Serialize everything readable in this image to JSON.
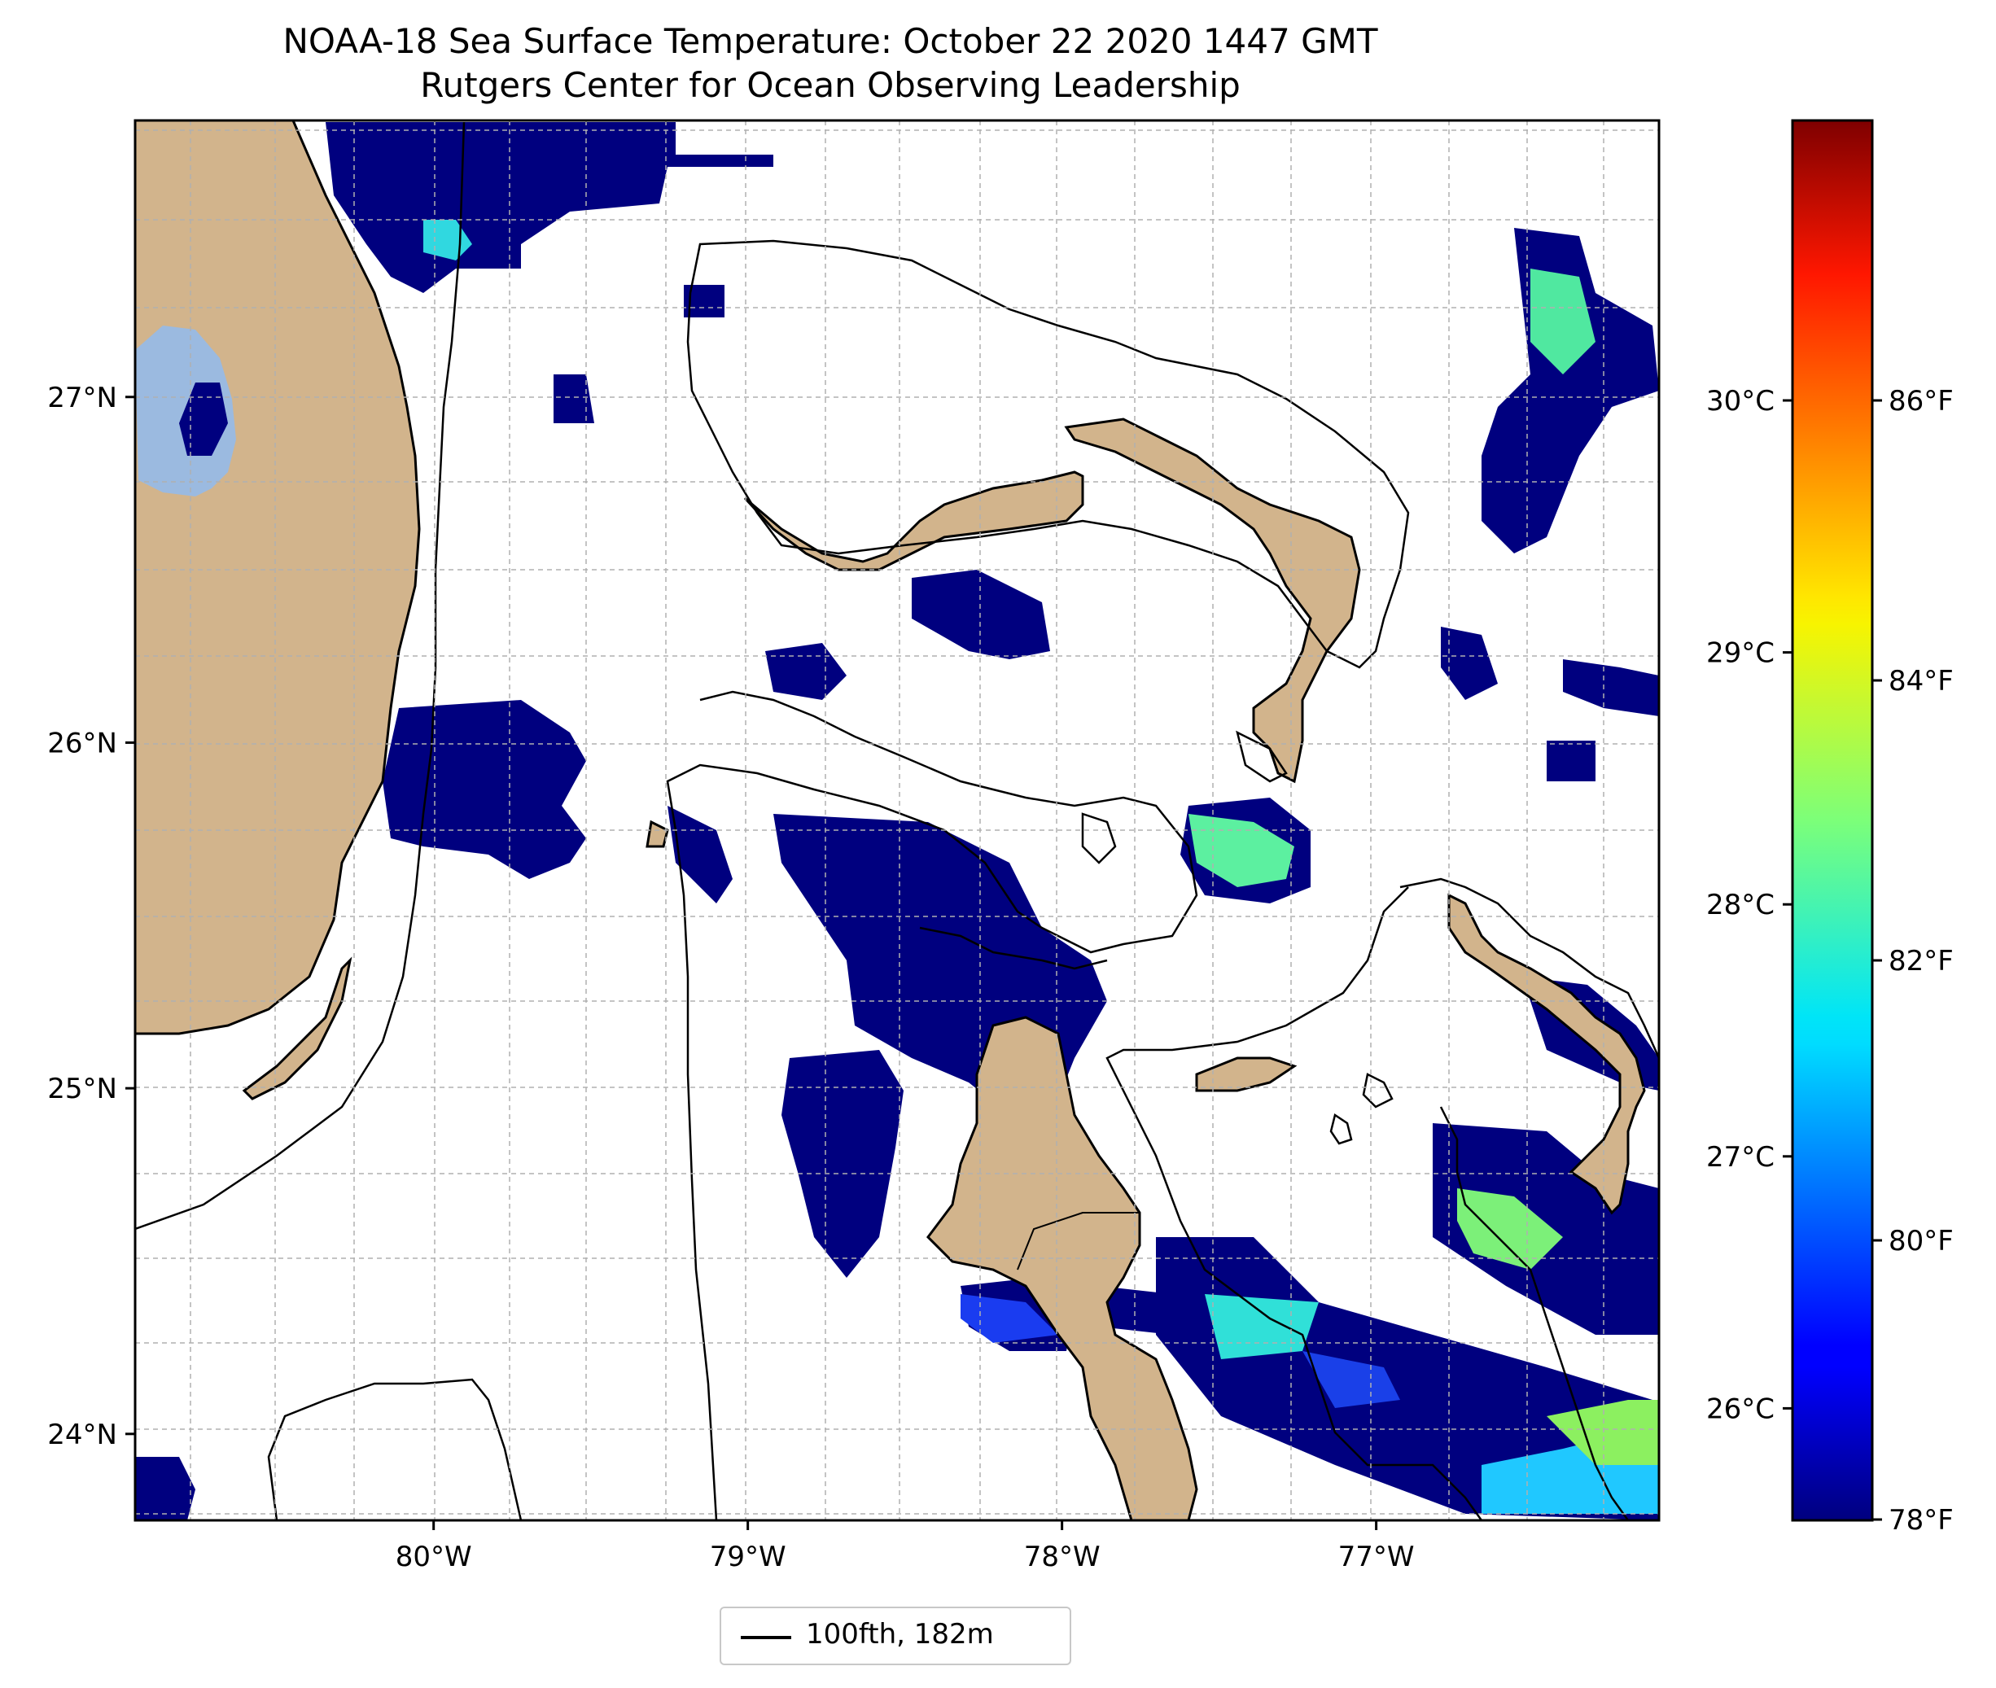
{
  "title": {
    "line1": "NOAA-18 Sea Surface Temperature: October 22 2020 1447 GMT",
    "line2": "Rutgers Center for Ocean Observing Leadership"
  },
  "map": {
    "extent": {
      "lon_min": -80.95,
      "lon_max": -76.1,
      "lat_min": 23.75,
      "lat_max": 27.8
    },
    "land_color": "#d2b48c",
    "lake_color": "#9bbae0",
    "gridlines": true,
    "lat_ticks": [
      {
        "value": 27,
        "label": "27°N"
      },
      {
        "value": 26,
        "label": "26°N"
      },
      {
        "value": 25,
        "label": "25°N"
      },
      {
        "value": 24,
        "label": "24°N"
      }
    ],
    "lon_ticks": [
      {
        "value": -80,
        "label": "80°W"
      },
      {
        "value": -79,
        "label": "79°W"
      },
      {
        "value": -78,
        "label": "78°W"
      },
      {
        "value": -77,
        "label": "77°W"
      }
    ]
  },
  "colorbar": {
    "colormap": "jet",
    "range_f": [
      78,
      88
    ],
    "celsius_ticks": [
      {
        "value": 30,
        "label": "30°C"
      },
      {
        "value": 29,
        "label": "29°C"
      },
      {
        "value": 28,
        "label": "28°C"
      },
      {
        "value": 27,
        "label": "27°C"
      },
      {
        "value": 26,
        "label": "26°C"
      }
    ],
    "fahrenheit_ticks": [
      {
        "value": 86,
        "label": "86°F"
      },
      {
        "value": 84,
        "label": "84°F"
      },
      {
        "value": 82,
        "label": "82°F"
      },
      {
        "value": 80,
        "label": "80°F"
      },
      {
        "value": 78,
        "label": "78°F"
      }
    ]
  },
  "legend": {
    "entries": [
      {
        "label": "100fth, 182m",
        "color": "#000000"
      }
    ]
  }
}
